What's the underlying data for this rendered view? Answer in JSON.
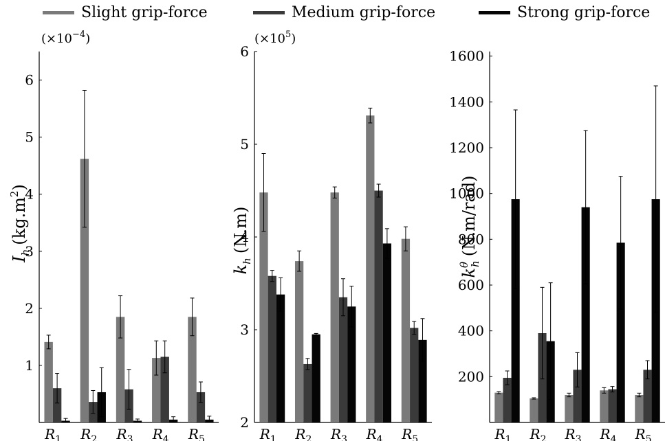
{
  "legend": [
    {
      "label": "Slight grip-force",
      "color": "#7a7a7a"
    },
    {
      "label": "Medium grip-force",
      "color": "#3a3a3a"
    },
    {
      "label": "Strong grip-force",
      "color": "#050505"
    }
  ],
  "chart_data": [
    {
      "type": "bar",
      "ylabel": "I_h (kg.m^2)",
      "ylabel_main": "I",
      "ylabel_sub": "h",
      "ylabel_unit": "(kg.m",
      "ylabel_sup": "2",
      "ylabel_close": ")",
      "multiplier_pre": "(×10",
      "multiplier_sup": "−4",
      "multiplier_post": ")",
      "ylim": [
        0,
        6.5
      ],
      "yticks": [
        1,
        2,
        3,
        4,
        5,
        6
      ],
      "categories": [
        "R1",
        "R2",
        "R3",
        "R4",
        "R5"
      ],
      "series": [
        {
          "name": "Slight grip-force",
          "values": [
            1.41,
            4.62,
            1.85,
            1.13,
            1.85
          ],
          "errors": [
            0.12,
            1.2,
            0.37,
            0.3,
            0.33
          ]
        },
        {
          "name": "Medium grip-force",
          "values": [
            0.6,
            0.36,
            0.58,
            1.15,
            0.53
          ],
          "errors": [
            0.26,
            0.2,
            0.35,
            0.28,
            0.18
          ]
        },
        {
          "name": "Strong grip-force",
          "values": [
            0.03,
            0.53,
            0.03,
            0.05,
            0.05
          ],
          "errors": [
            0.04,
            0.43,
            0.03,
            0.05,
            0.06
          ]
        }
      ]
    },
    {
      "type": "bar",
      "ylabel": "k_h (N.m)",
      "ylabel_main": "k",
      "ylabel_sub": "h",
      "ylabel_unit": "(N.m)",
      "multiplier_pre": "(×10",
      "multiplier_sup": "5",
      "multiplier_post": ")",
      "ylim": [
        2,
        6
      ],
      "yticks": [
        2,
        3,
        4,
        5,
        6
      ],
      "categories": [
        "R1",
        "R2",
        "R3",
        "R4",
        "R5"
      ],
      "series": [
        {
          "name": "Slight grip-force",
          "values": [
            4.48,
            3.74,
            4.48,
            5.31,
            3.98
          ],
          "errors": [
            0.42,
            0.11,
            0.06,
            0.08,
            0.13
          ]
        },
        {
          "name": "Medium grip-force",
          "values": [
            3.58,
            2.63,
            3.35,
            4.5,
            3.02
          ],
          "errors": [
            0.06,
            0.06,
            0.2,
            0.07,
            0.07
          ]
        },
        {
          "name": "Strong grip-force",
          "values": [
            3.38,
            2.95,
            3.25,
            3.93,
            2.89
          ],
          "errors": [
            0.18,
            0.01,
            0.22,
            0.16,
            0.23
          ]
        }
      ]
    },
    {
      "type": "bar",
      "ylabel": "k_h^θ (N.m/rad)",
      "ylabel_main": "k",
      "ylabel_sub": "h",
      "ylabel_sup": "θ",
      "ylabel_unit": "(N.m/rad)",
      "ylim": [
        0,
        1620
      ],
      "yticks": [
        200,
        400,
        600,
        800,
        1000,
        1200,
        1400,
        1600
      ],
      "categories": [
        "R1",
        "R2",
        "R3",
        "R4",
        "R5"
      ],
      "series": [
        {
          "name": "Slight grip-force",
          "values": [
            130,
            105,
            120,
            140,
            120
          ],
          "errors": [
            5,
            3,
            8,
            12,
            8
          ]
        },
        {
          "name": "Medium grip-force",
          "values": [
            195,
            390,
            230,
            145,
            230
          ],
          "errors": [
            30,
            200,
            75,
            12,
            40
          ]
        },
        {
          "name": "Strong grip-force",
          "values": [
            975,
            355,
            940,
            785,
            975
          ],
          "errors": [
            390,
            255,
            335,
            290,
            495
          ]
        }
      ]
    }
  ]
}
